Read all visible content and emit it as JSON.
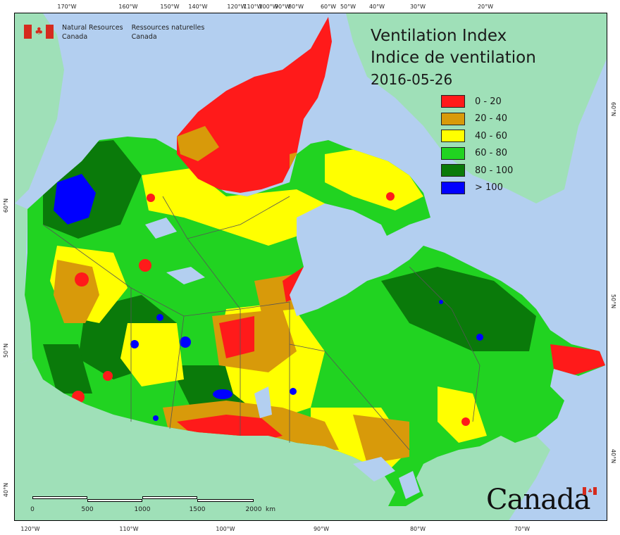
{
  "title": {
    "line1": "Ventilation Index",
    "line2": "Indice de ventilation",
    "date": "2016-05-26"
  },
  "agency": {
    "en_line1": "Natural Resources",
    "en_line2": "Canada",
    "fr_line1": "Ressources naturelles",
    "fr_line2": "Canada"
  },
  "wordmark": "Canada",
  "legend": [
    {
      "label": "0 - 20",
      "color": "#ff1a1a"
    },
    {
      "label": "20 - 40",
      "color": "#d89a0a"
    },
    {
      "label": "40 - 60",
      "color": "#ffff00"
    },
    {
      "label": "60 - 80",
      "color": "#21d321"
    },
    {
      "label": "80 - 100",
      "color": "#0a7a0a"
    },
    {
      "label": "> 100",
      "color": "#0000ff"
    }
  ],
  "graticule": {
    "top": [
      "170°W",
      "160°W",
      "150°W",
      "140°W",
      "120°W",
      "110°W",
      "100°W",
      "90°W",
      "80°W",
      "60°W",
      "50°W",
      "40°W",
      "30°W",
      "20°W"
    ],
    "bottom": [
      "120°W",
      "110°W",
      "100°W",
      "90°W",
      "80°W",
      "70°W"
    ],
    "left": [
      "60°N",
      "50°N",
      "40°N"
    ],
    "right": [
      "60°N",
      "50°N",
      "40°N"
    ]
  },
  "scale": {
    "labels": [
      "0",
      "500",
      "1000",
      "1500",
      "2000"
    ],
    "unit": "km"
  },
  "colors": {
    "water": "#b3cff0",
    "foreign_land": "#9fe0b8",
    "border": "#555555"
  }
}
